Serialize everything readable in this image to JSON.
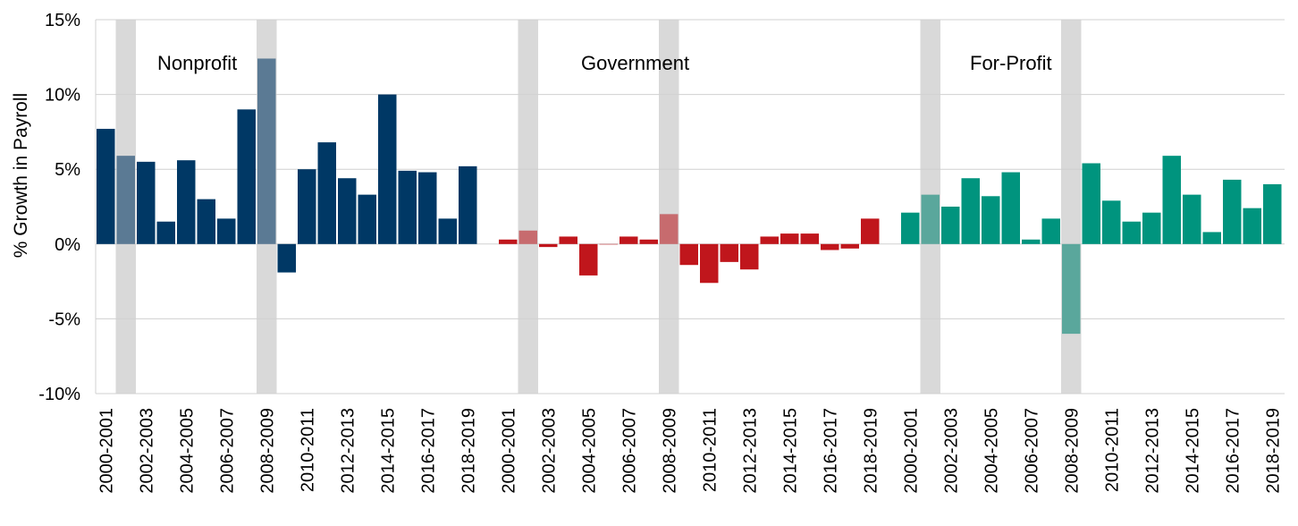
{
  "chart_data": {
    "type": "bar",
    "ylabel": "% Growth in Payroll",
    "ylim": [
      -10,
      15
    ],
    "yticks": [
      -10,
      -5,
      0,
      5,
      10,
      15
    ],
    "ytick_labels": [
      "-10%",
      "-5%",
      "0%",
      "5%",
      "10%",
      "15%"
    ],
    "grid": true,
    "recession_periods": [
      "2001-2002",
      "2008-2009"
    ],
    "categories": [
      "2000-2001",
      "2001-2002",
      "2002-2003",
      "2003-2004",
      "2004-2005",
      "2005-2006",
      "2006-2007",
      "2007-2008",
      "2008-2009",
      "2009-2010",
      "2010-2011",
      "2011-2012",
      "2012-2013",
      "2013-2014",
      "2014-2015",
      "2015-2016",
      "2016-2017",
      "2017-2018",
      "2018-2019"
    ],
    "x_tick_labels": [
      "2000-2001",
      "2002-2003",
      "2004-2005",
      "2006-2007",
      "2008-2009",
      "2010-2011",
      "2012-2013",
      "2014-2015",
      "2016-2017",
      "2018-2019"
    ],
    "series": [
      {
        "name": "Nonprofit",
        "color": "#003865",
        "recession_color": "#5b7a94",
        "values": [
          7.7,
          5.9,
          5.5,
          1.5,
          5.6,
          3.0,
          1.7,
          9.0,
          12.4,
          -1.9,
          5.0,
          6.8,
          4.4,
          3.3,
          10.0,
          4.9,
          4.8,
          1.7,
          5.2
        ]
      },
      {
        "name": "Government",
        "color": "#c0161c",
        "recession_color": "#c76b6e",
        "values": [
          0.3,
          0.9,
          -0.2,
          0.5,
          -2.1,
          0.0,
          0.5,
          0.3,
          2.0,
          -1.4,
          -2.6,
          -1.2,
          -1.7,
          0.5,
          0.7,
          0.7,
          -0.4,
          -0.3,
          1.7
        ]
      },
      {
        "name": "For-Profit",
        "color": "#00947e",
        "recession_color": "#5aa79c",
        "values": [
          2.1,
          3.3,
          2.5,
          4.4,
          3.2,
          4.8,
          0.3,
          1.7,
          -6.0,
          5.4,
          2.9,
          1.5,
          2.1,
          5.9,
          3.3,
          0.8,
          4.3,
          2.4,
          4.0
        ]
      }
    ]
  }
}
